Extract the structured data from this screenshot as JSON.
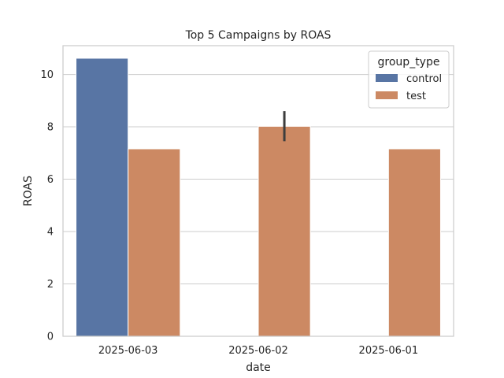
{
  "chart_data": {
    "type": "bar",
    "title": "Top 5 Campaigns by ROAS",
    "xlabel": "date",
    "ylabel": "ROAS",
    "categories": [
      "2025-06-03",
      "2025-06-02",
      "2025-06-01"
    ],
    "ylim": [
      0,
      11.1
    ],
    "yticks": [
      "0",
      "2",
      "4",
      "6",
      "8",
      "10"
    ],
    "grid": "horizontal",
    "legend": {
      "title": "group_type",
      "placement": "top-right"
    },
    "series": [
      {
        "name": "control",
        "color": "#5875a4",
        "values": [
          10.62,
          null,
          null
        ],
        "error_low": [
          null,
          null,
          null
        ],
        "error_high": [
          null,
          null,
          null
        ]
      },
      {
        "name": "test",
        "color": "#cc8963",
        "values": [
          7.16,
          8.02,
          7.16
        ],
        "error_low": [
          null,
          7.45,
          null
        ],
        "error_high": [
          null,
          8.6,
          null
        ]
      }
    ]
  }
}
